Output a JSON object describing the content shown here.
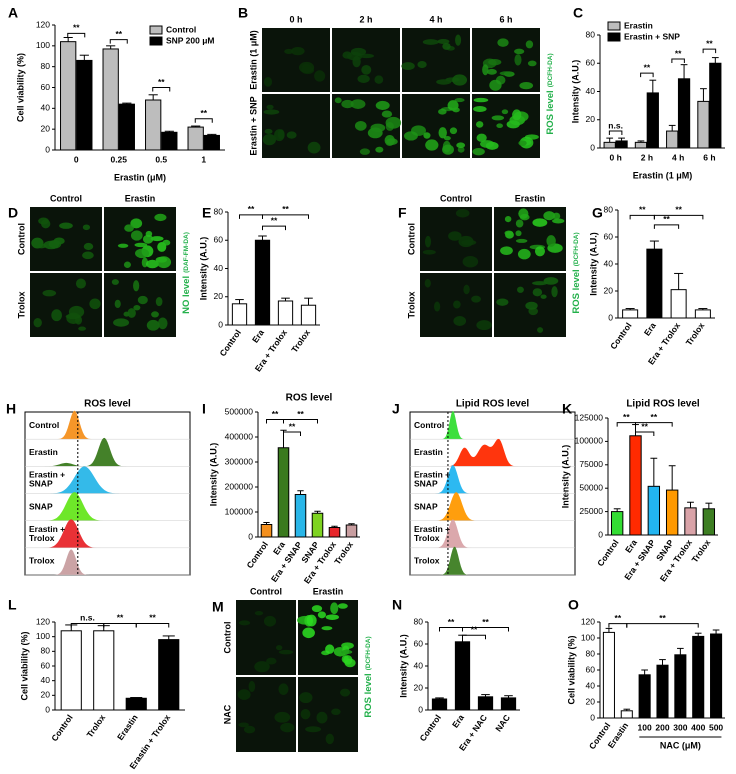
{
  "chart_data": [
    {
      "type": "bar",
      "panel": "A",
      "categories": [
        "0",
        "0.25",
        "0.5",
        "1"
      ],
      "xlabel": "Erastin (μM)",
      "ylabel": "Cell viability (%)",
      "ylim": [
        0,
        120
      ],
      "yticks": [
        0,
        20,
        40,
        60,
        80,
        100,
        120
      ],
      "series": [
        {
          "name": "Control",
          "color": "#bdbdbd",
          "values": [
            104,
            97,
            48,
            22
          ],
          "errors": [
            4,
            3,
            5,
            1
          ]
        },
        {
          "name": "SNP 200 μM",
          "color": "#000000",
          "values": [
            86,
            44,
            17,
            14
          ],
          "errors": [
            5,
            1,
            1,
            1
          ]
        }
      ],
      "annotations": [
        "**",
        "**",
        "**",
        "**"
      ]
    },
    {
      "type": "bar",
      "panel": "C",
      "categories": [
        "0 h",
        "2 h",
        "4 h",
        "6 h"
      ],
      "xlabel": "Erastin (1 μM)",
      "ylabel": "Intensity (A.U.)",
      "ylim": [
        0,
        80
      ],
      "yticks": [
        0,
        20,
        40,
        60,
        80
      ],
      "series": [
        {
          "name": "Erastin",
          "color": "#bdbdbd",
          "values": [
            4,
            4,
            12,
            33
          ],
          "errors": [
            3,
            1,
            4,
            9
          ]
        },
        {
          "name": "Erastin + SNP",
          "color": "#000000",
          "values": [
            5,
            39,
            49,
            60
          ],
          "errors": [
            2,
            9,
            10,
            4
          ]
        }
      ],
      "annotations": [
        "n.s.",
        "**",
        "**",
        "**"
      ]
    },
    {
      "type": "bar",
      "panel": "E",
      "categories": [
        "Control",
        "Era",
        "Era + Trolox",
        "Trolox"
      ],
      "ylabel": "Intensity (A.U.)",
      "ylim": [
        0,
        80
      ],
      "yticks": [
        0,
        20,
        40,
        60,
        80
      ],
      "values": [
        15,
        60,
        17,
        14
      ],
      "errors": [
        3,
        3,
        2,
        5
      ],
      "colors": [
        "#ffffff",
        "#000000",
        "#ffffff",
        "#ffffff"
      ],
      "annotations": [
        "**",
        "**",
        "**"
      ]
    },
    {
      "type": "bar",
      "panel": "G",
      "categories": [
        "Control",
        "Era",
        "Era + Trolox",
        "Trolox"
      ],
      "ylabel": "Intensity (A.U.)",
      "ylim": [
        0,
        80
      ],
      "yticks": [
        0,
        20,
        40,
        60,
        80
      ],
      "values": [
        6,
        51,
        21,
        6
      ],
      "errors": [
        1,
        6,
        12,
        1
      ],
      "colors": [
        "#ffffff",
        "#000000",
        "#ffffff",
        "#ffffff"
      ],
      "annotations": [
        "**",
        "**",
        "**"
      ]
    },
    {
      "type": "bar",
      "panel": "I",
      "title": "ROS level",
      "categories": [
        "Control",
        "Era",
        "Era + SNAP",
        "SNAP",
        "Era + Trolox",
        "Trolox"
      ],
      "ylabel": "Intensity (A.U.)",
      "ylim": [
        0,
        500000
      ],
      "yticks": [
        0,
        100000,
        200000,
        300000,
        400000,
        500000
      ],
      "values": [
        50000,
        357000,
        170000,
        95000,
        38000,
        48000
      ],
      "errors": [
        8000,
        70000,
        15000,
        8000,
        5000,
        5000
      ],
      "colors": [
        "#f4901e",
        "#3a7a1e",
        "#29b6e8",
        "#7ed321",
        "#e8262b",
        "#c89ea0"
      ],
      "annotations": [
        "**",
        "**",
        "**"
      ]
    },
    {
      "type": "bar",
      "panel": "K",
      "title": "Lipid ROS level",
      "categories": [
        "Control",
        "Era",
        "Era + SNAP",
        "SNAP",
        "Era + Trolox",
        "Trolox"
      ],
      "ylabel": "Intensity (A.U.)",
      "ylim": [
        0,
        125000
      ],
      "yticks": [
        0,
        25000,
        50000,
        75000,
        100000,
        125000
      ],
      "values": [
        25000,
        106000,
        52000,
        48000,
        29000,
        28000
      ],
      "errors": [
        3000,
        12000,
        30000,
        26000,
        6000,
        6000
      ],
      "colors": [
        "#33dd33",
        "#ff2a00",
        "#22b5f0",
        "#ff9900",
        "#d9a3a8",
        "#3d7e22"
      ],
      "annotations": [
        "**",
        "**",
        "**"
      ]
    },
    {
      "type": "bar",
      "panel": "L",
      "categories": [
        "Control",
        "Trolox",
        "Erastin",
        "Erastin + Trolox"
      ],
      "ylabel": "Cell viability (%)",
      "ylim": [
        0,
        120
      ],
      "yticks": [
        0,
        20,
        40,
        60,
        80,
        100,
        120
      ],
      "values": [
        108,
        108,
        16,
        96
      ],
      "errors": [
        8,
        7,
        1,
        5
      ],
      "colors": [
        "#ffffff",
        "#ffffff",
        "#000000",
        "#000000"
      ],
      "annotations": [
        "n.s.",
        "**",
        "**"
      ]
    },
    {
      "type": "bar",
      "panel": "N",
      "categories": [
        "Control",
        "Era",
        "Era + NAC",
        "NAC"
      ],
      "ylabel": "Intensity (A.U.)",
      "ylim": [
        0,
        80
      ],
      "yticks": [
        0,
        20,
        40,
        60,
        80
      ],
      "values": [
        10,
        62,
        12,
        11
      ],
      "errors": [
        1,
        6,
        2,
        2
      ],
      "colors": [
        "#000000",
        "#000000",
        "#000000",
        "#000000"
      ],
      "annotations": [
        "**",
        "**",
        "**"
      ]
    },
    {
      "type": "bar",
      "panel": "O",
      "categories": [
        "Control",
        "Erastin",
        "100",
        "200",
        "300",
        "400",
        "500"
      ],
      "xlabel": "NAC (μM)",
      "ylabel": "Cell viability (%)",
      "ylim": [
        0,
        120
      ],
      "yticks": [
        0,
        20,
        40,
        60,
        80,
        100,
        120
      ],
      "values": [
        107,
        9,
        54,
        66,
        79,
        102,
        105
      ],
      "errors": [
        5,
        2,
        6,
        7,
        8,
        4,
        5
      ],
      "colors": [
        "#ffffff",
        "#ffffff",
        "#000000",
        "#000000",
        "#000000",
        "#000000",
        "#000000"
      ],
      "annotations": [
        "**",
        "**"
      ]
    }
  ],
  "image_panels": [
    {
      "panel": "B",
      "columns": [
        "0 h",
        "2 h",
        "4 h",
        "6 h"
      ],
      "rows": [
        "Erastin (1 μM)",
        "Erastin + SNP"
      ],
      "side_label": "ROS level",
      "side_label_sub": "(DCFH-DA)"
    },
    {
      "panel": "D",
      "columns": [
        "Control",
        "Erastin"
      ],
      "rows": [
        "Control",
        "Trolox"
      ],
      "side_label": "NO level",
      "side_label_sub": "(DAF-FM-DA)"
    },
    {
      "panel": "F",
      "columns": [
        "Control",
        "Erastin"
      ],
      "rows": [
        "Control",
        "Trolox"
      ],
      "side_label": "ROS level",
      "side_label_sub": "(DCFH-DA)"
    },
    {
      "panel": "M",
      "columns": [
        "Control",
        "Erastin"
      ],
      "rows": [
        "Control",
        "NAC"
      ],
      "side_label": "ROS level",
      "side_label_sub": "(DCFH-DA)"
    }
  ],
  "histogram_panels": [
    {
      "panel": "H",
      "title": "ROS level",
      "rows": [
        [
          "Control"
        ],
        [
          "Erastin"
        ],
        [
          "Erastin +",
          "SNAP"
        ],
        [
          "SNAP"
        ],
        [
          "Erastin +",
          "Trolox"
        ],
        [
          "Trolox"
        ]
      ],
      "colors": [
        "#f4901e",
        "#3a7a1e",
        "#29b6e8",
        "#66e61e",
        "#e8262b",
        "#c89ea0"
      ]
    },
    {
      "panel": "J",
      "title": "Lipid ROS level",
      "rows": [
        [
          "Control"
        ],
        [
          "Erastin"
        ],
        [
          "Erastin +",
          "SNAP"
        ],
        [
          "SNAP"
        ],
        [
          "Erastin +",
          "Trolox"
        ],
        [
          "Trolox"
        ]
      ],
      "colors": [
        "#33dd33",
        "#ff2a00",
        "#22b5f0",
        "#ff9900",
        "#d9a3a8",
        "#3d7e22"
      ]
    }
  ]
}
